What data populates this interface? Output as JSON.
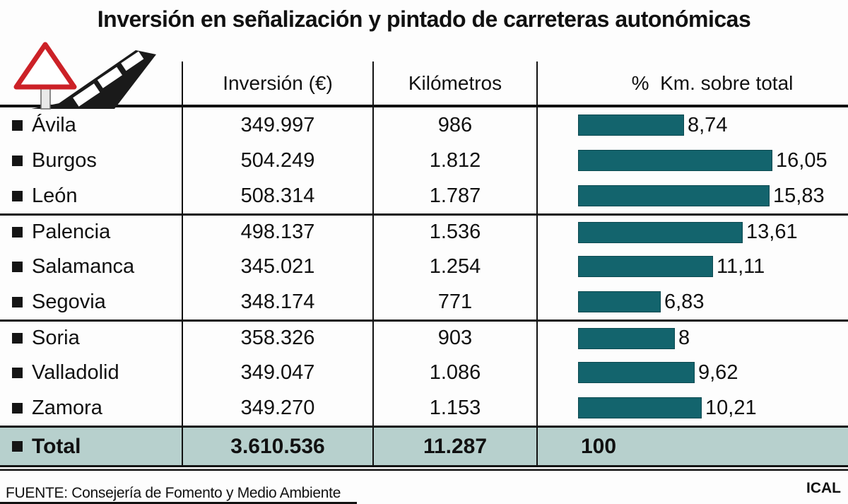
{
  "title": "Inversión en señalización y pintado de carreteras autonómicas",
  "table": {
    "columns": [
      "Inversión (€)",
      "Kilómetros",
      "%  Km. sobre total"
    ],
    "rows": [
      {
        "name": "Ávila",
        "inversion": "349.997",
        "km": "986",
        "pct_label": "8,74",
        "pct": 8.74
      },
      {
        "name": "Burgos",
        "inversion": "504.249",
        "km": "1.812",
        "pct_label": "16,05",
        "pct": 16.05
      },
      {
        "name": "León",
        "inversion": "508.314",
        "km": "1.787",
        "pct_label": "15,83",
        "pct": 15.83
      },
      {
        "name": "Palencia",
        "inversion": "498.137",
        "km": "1.536",
        "pct_label": "13,61",
        "pct": 13.61
      },
      {
        "name": "Salamanca",
        "inversion": "345.021",
        "km": "1.254",
        "pct_label": "11,11",
        "pct": 11.11
      },
      {
        "name": "Segovia",
        "inversion": "348.174",
        "km": "771",
        "pct_label": "6,83",
        "pct": 6.83
      },
      {
        "name": "Soria",
        "inversion": "358.326",
        "km": "903",
        "pct_label": "8",
        "pct": 8.0
      },
      {
        "name": "Valladolid",
        "inversion": "349.047",
        "km": "1.086",
        "pct_label": "9,62",
        "pct": 9.62
      },
      {
        "name": "Zamora",
        "inversion": "349.270",
        "km": "1.153",
        "pct_label": "10,21",
        "pct": 10.21
      }
    ],
    "total": {
      "name": "Total",
      "inversion": "3.610.536",
      "km": "11.287",
      "pct_label": "100"
    }
  },
  "footer": {
    "source": "FUENTE: Consejería de Fomento y Medio Ambiente",
    "credit": "ICAL"
  },
  "colors": {
    "bar_teal": "#13646d",
    "total_row_bg": "#b7d0cd",
    "warning_red": "#cc2127"
  },
  "chart_data": {
    "type": "bar",
    "orientation": "horizontal",
    "title": "Inversión en señalización y pintado de carreteras autonómicas",
    "categories": [
      "Ávila",
      "Burgos",
      "León",
      "Palencia",
      "Salamanca",
      "Segovia",
      "Soria",
      "Valladolid",
      "Zamora"
    ],
    "series": [
      {
        "name": "Inversión (€)",
        "values": [
          349997,
          504249,
          508314,
          498137,
          345021,
          348174,
          358326,
          349047,
          349270
        ]
      },
      {
        "name": "Kilómetros",
        "values": [
          986,
          1812,
          1787,
          1536,
          1254,
          771,
          903,
          1086,
          1153
        ]
      },
      {
        "name": "% Km. sobre total",
        "values": [
          8.74,
          16.05,
          15.83,
          13.61,
          11.11,
          6.83,
          8,
          9.62,
          10.21
        ]
      }
    ],
    "plotted_series": "% Km. sobre total",
    "totals": {
      "inversion": 3610536,
      "km": 11287,
      "pct": 100
    },
    "xlim": [
      0,
      17
    ],
    "data_labels": true,
    "grid": false,
    "legend": "none",
    "bar_color": "#13646d"
  }
}
